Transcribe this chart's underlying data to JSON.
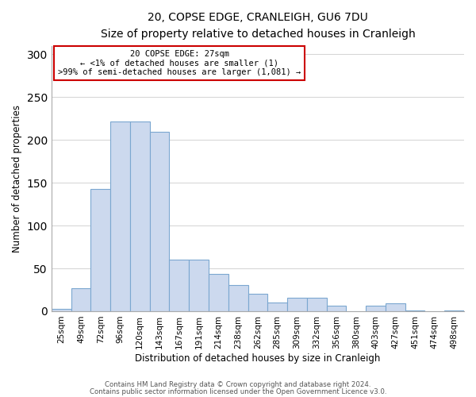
{
  "title": "20, COPSE EDGE, CRANLEIGH, GU6 7DU",
  "subtitle": "Size of property relative to detached houses in Cranleigh",
  "xlabel": "Distribution of detached houses by size in Cranleigh",
  "ylabel": "Number of detached properties",
  "footnote1": "Contains HM Land Registry data © Crown copyright and database right 2024.",
  "footnote2": "Contains public sector information licensed under the Open Government Licence v3.0.",
  "bar_labels": [
    "25sqm",
    "49sqm",
    "72sqm",
    "96sqm",
    "120sqm",
    "143sqm",
    "167sqm",
    "191sqm",
    "214sqm",
    "238sqm",
    "262sqm",
    "285sqm",
    "309sqm",
    "332sqm",
    "356sqm",
    "380sqm",
    "403sqm",
    "427sqm",
    "451sqm",
    "474sqm",
    "498sqm"
  ],
  "bar_values": [
    3,
    27,
    143,
    222,
    222,
    210,
    60,
    60,
    44,
    31,
    20,
    10,
    16,
    16,
    6,
    0,
    6,
    9,
    1,
    0,
    1
  ],
  "bar_color": "#ccd9ee",
  "bar_edge_color": "#7ba7d0",
  "annotation_title": "20 COPSE EDGE: 27sqm",
  "annotation_line1": "← <1% of detached houses are smaller (1)",
  "annotation_line2": ">99% of semi-detached houses are larger (1,081) →",
  "annotation_box_color": "#ffffff",
  "annotation_border_color": "#cc0000",
  "ylim": [
    0,
    310
  ],
  "yticks": [
    0,
    50,
    100,
    150,
    200,
    250,
    300
  ],
  "background_color": "#ffffff",
  "grid_color": "#cccccc"
}
